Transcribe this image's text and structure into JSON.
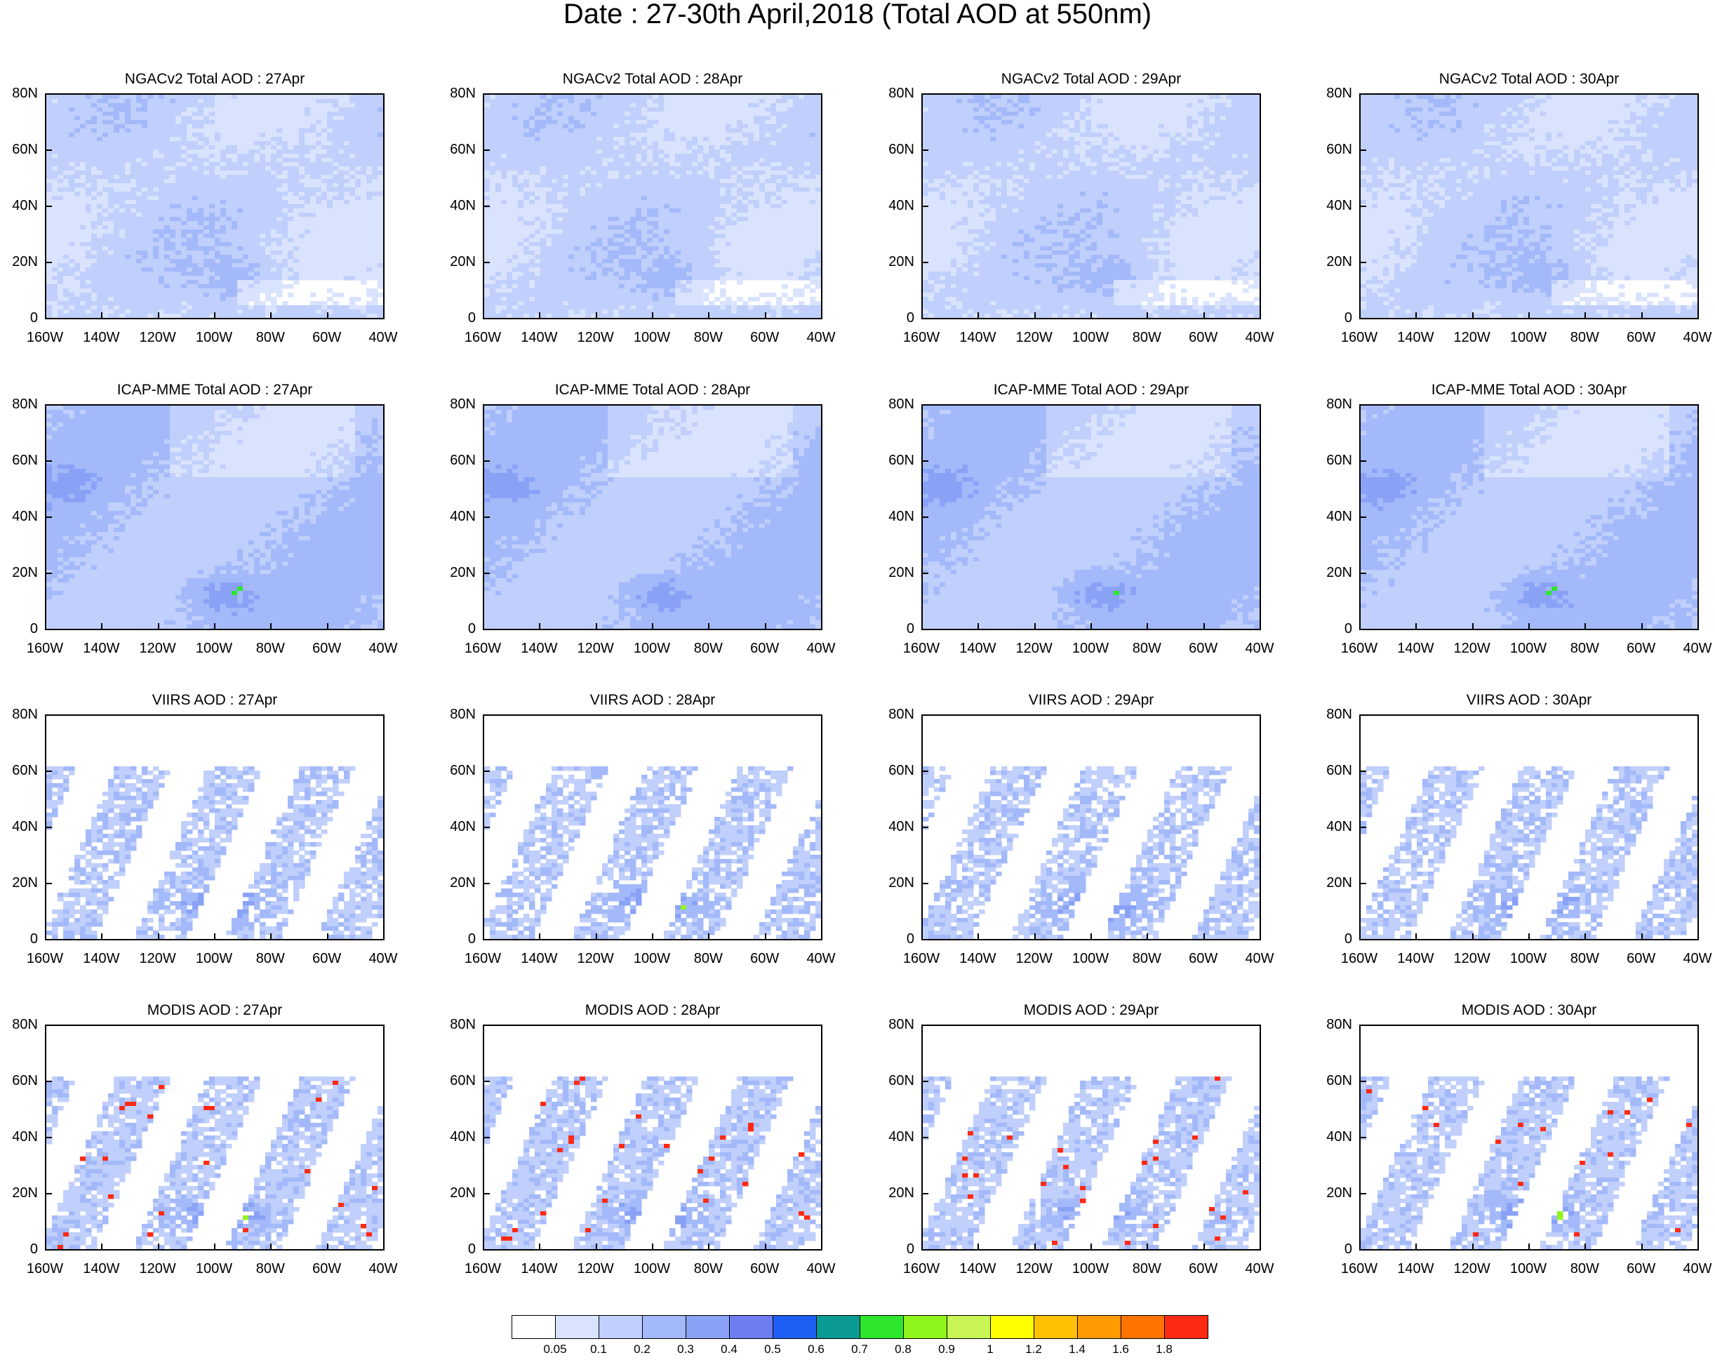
{
  "title": "Date : 27-30th April,2018 (Total AOD at 550nm)",
  "lat_labels": [
    "80N",
    "60N",
    "40N",
    "20N",
    "0"
  ],
  "lon_labels": [
    "160W",
    "140W",
    "120W",
    "100W",
    "80W",
    "60W",
    "40W"
  ],
  "panels": [
    {
      "title": "NGACv2 Total AOD : 27Apr",
      "style": "model",
      "seed": 11
    },
    {
      "title": "NGACv2 Total AOD : 28Apr",
      "style": "model",
      "seed": 12
    },
    {
      "title": "NGACv2 Total AOD : 29Apr",
      "style": "model",
      "seed": 13
    },
    {
      "title": "NGACv2 Total AOD : 30Apr",
      "style": "model",
      "seed": 14
    },
    {
      "title": "ICAP-MME Total AOD : 27Apr",
      "style": "icap",
      "seed": 21
    },
    {
      "title": "ICAP-MME Total AOD : 28Apr",
      "style": "icap",
      "seed": 22
    },
    {
      "title": "ICAP-MME Total AOD : 29Apr",
      "style": "icap",
      "seed": 23
    },
    {
      "title": "ICAP-MME Total AOD : 30Apr",
      "style": "icap",
      "seed": 24
    },
    {
      "title": "VIIRS AOD : 27Apr",
      "style": "viirs",
      "seed": 31
    },
    {
      "title": "VIIRS AOD : 28Apr",
      "style": "viirs",
      "seed": 32
    },
    {
      "title": "VIIRS AOD : 29Apr",
      "style": "viirs",
      "seed": 33
    },
    {
      "title": "VIIRS AOD : 30Apr",
      "style": "viirs",
      "seed": 34
    },
    {
      "title": "MODIS AOD : 27Apr",
      "style": "modis",
      "seed": 41
    },
    {
      "title": "MODIS AOD : 28Apr",
      "style": "modis",
      "seed": 42
    },
    {
      "title": "MODIS AOD : 29Apr",
      "style": "modis",
      "seed": 43
    },
    {
      "title": "MODIS AOD : 30Apr",
      "style": "modis",
      "seed": 44
    }
  ],
  "colorbar": {
    "colors": [
      "#ffffff",
      "#d9e3fd",
      "#c0cffb",
      "#a3b9fa",
      "#8aa2f6",
      "#6e7ef0",
      "#1f5ff5",
      "#0c9a95",
      "#2ee62e",
      "#90f51a",
      "#c8f553",
      "#ffff00",
      "#ffc000",
      "#ff9a00",
      "#ff7400",
      "#ff2a14"
    ],
    "labels": [
      "0.05",
      "0.1",
      "0.2",
      "0.3",
      "0.4",
      "0.5",
      "0.6",
      "0.7",
      "0.8",
      "0.9",
      "1",
      "1.2",
      "1.4",
      "1.6",
      "1.8"
    ]
  }
}
